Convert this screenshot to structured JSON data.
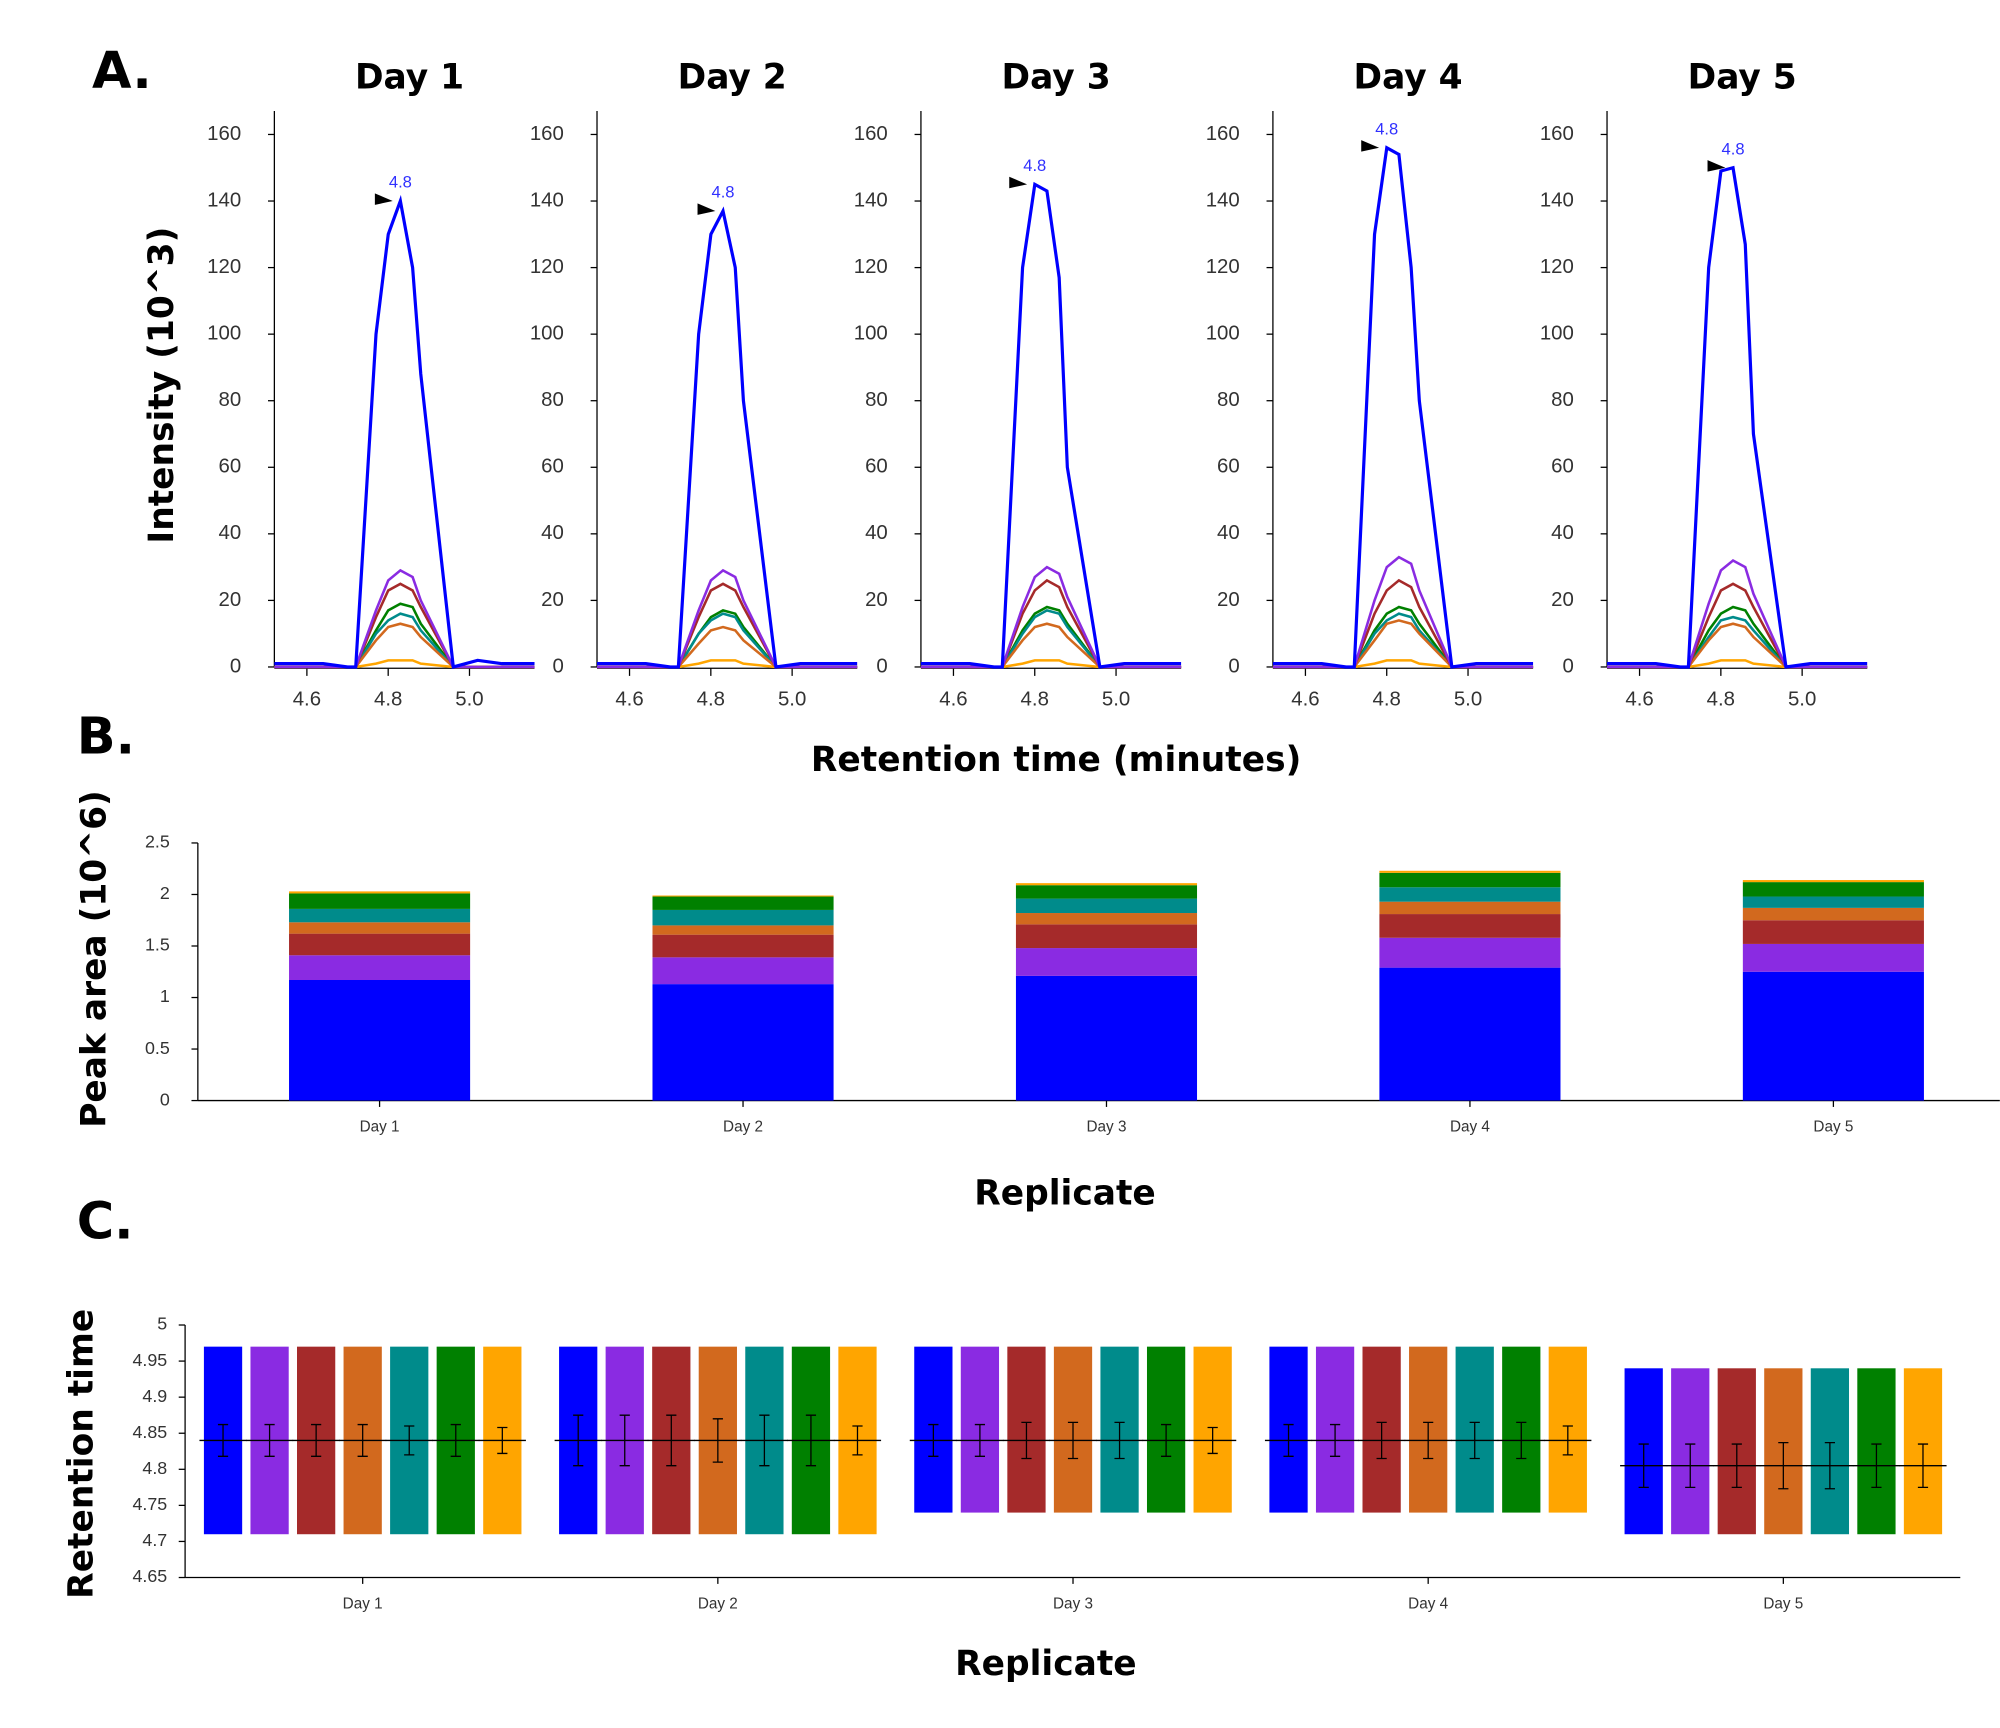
{
  "chart_data": [
    {
      "type": "line",
      "panel_label": "A.",
      "title": "Day 1",
      "ylabel": "Intensity (10^3)",
      "peak_label": "4.8",
      "x": [
        4.52,
        4.58,
        4.64,
        4.7,
        4.72,
        4.77,
        4.8,
        4.83,
        4.86,
        4.88,
        4.96,
        5.02,
        5.08,
        5.16
      ],
      "xlim": [
        4.52,
        5.16
      ],
      "xticks": [
        4.6,
        4.8,
        {
          "value": 5,
          "label": "5.0"
        }
      ],
      "ylim": [
        0,
        164
      ],
      "yticks": [
        0,
        20,
        40,
        60,
        80,
        100,
        120,
        140,
        160
      ],
      "series": [
        {
          "color": "#0000ff",
          "values": [
            1,
            1,
            1,
            0,
            0,
            100,
            130,
            140,
            120,
            88,
            0,
            2,
            1,
            1
          ]
        },
        {
          "color": "#8a2be2",
          "values": [
            0,
            0,
            0,
            0,
            0,
            17,
            26,
            29,
            27,
            20,
            0,
            0,
            0,
            0
          ]
        },
        {
          "color": "#a52a2a",
          "values": [
            0,
            0,
            0,
            0,
            0,
            15,
            23,
            25,
            23,
            18,
            0,
            0,
            0,
            0
          ]
        },
        {
          "color": "#d2691e",
          "values": [
            0,
            0,
            0,
            0,
            0,
            8,
            12,
            13,
            12,
            9,
            0,
            0,
            0,
            0
          ]
        },
        {
          "color": "#008b8b",
          "values": [
            0,
            0,
            0,
            0,
            0,
            10,
            14,
            16,
            15,
            11,
            0,
            0,
            0,
            0
          ]
        },
        {
          "color": "#008000",
          "values": [
            0,
            0,
            0,
            0,
            0,
            11,
            17,
            19,
            18,
            13,
            0,
            0,
            0,
            0
          ]
        },
        {
          "color": "#ffa500",
          "values": [
            0,
            0,
            0,
            0,
            0,
            1,
            2,
            2,
            2,
            1,
            0,
            0,
            0,
            0
          ]
        }
      ]
    },
    {
      "type": "line",
      "title": "Day 2",
      "peak_label": "4.8",
      "x": [
        4.52,
        4.58,
        4.64,
        4.7,
        4.72,
        4.77,
        4.8,
        4.83,
        4.86,
        4.88,
        4.96,
        5.02,
        5.08,
        5.16
      ],
      "xlim": [
        4.52,
        5.16
      ],
      "xticks": [
        4.6,
        4.8,
        {
          "value": 5,
          "label": "5.0"
        }
      ],
      "ylim": [
        0,
        164
      ],
      "yticks": [
        0,
        20,
        40,
        60,
        80,
        100,
        120,
        140,
        160
      ],
      "series": [
        {
          "color": "#0000ff",
          "values": [
            1,
            1,
            1,
            0,
            0,
            100,
            130,
            137,
            120,
            80,
            0,
            1,
            1,
            1
          ]
        },
        {
          "color": "#8a2be2",
          "values": [
            0,
            0,
            0,
            0,
            0,
            17,
            26,
            29,
            27,
            20,
            0,
            0,
            0,
            0
          ]
        },
        {
          "color": "#a52a2a",
          "values": [
            0,
            0,
            0,
            0,
            0,
            15,
            23,
            25,
            23,
            18,
            0,
            0,
            0,
            0
          ]
        },
        {
          "color": "#d2691e",
          "values": [
            0,
            0,
            0,
            0,
            0,
            7,
            11,
            12,
            11,
            8,
            0,
            0,
            0,
            0
          ]
        },
        {
          "color": "#008b8b",
          "values": [
            0,
            0,
            0,
            0,
            0,
            10,
            14,
            16,
            15,
            11,
            0,
            0,
            0,
            0
          ]
        },
        {
          "color": "#008000",
          "values": [
            0,
            0,
            0,
            0,
            0,
            10,
            15,
            17,
            16,
            12,
            0,
            0,
            0,
            0
          ]
        },
        {
          "color": "#ffa500",
          "values": [
            0,
            0,
            0,
            0,
            0,
            1,
            2,
            2,
            2,
            1,
            0,
            0,
            0,
            0
          ]
        }
      ]
    },
    {
      "type": "line",
      "title": "Day 3",
      "xlabel": "Retention time (minutes)",
      "peak_label": "4.8",
      "x": [
        4.52,
        4.58,
        4.64,
        4.7,
        4.72,
        4.77,
        4.8,
        4.83,
        4.86,
        4.88,
        4.96,
        5.02,
        5.08,
        5.16
      ],
      "xlim": [
        4.52,
        5.16
      ],
      "xticks": [
        4.6,
        4.8,
        {
          "value": 5,
          "label": "5.0"
        }
      ],
      "ylim": [
        0,
        164
      ],
      "yticks": [
        0,
        20,
        40,
        60,
        80,
        100,
        120,
        140,
        160
      ],
      "series": [
        {
          "color": "#0000ff",
          "values": [
            1,
            1,
            1,
            0,
            0,
            120,
            145,
            143,
            117,
            60,
            0,
            1,
            1,
            1
          ]
        },
        {
          "color": "#8a2be2",
          "values": [
            0,
            0,
            0,
            0,
            0,
            18,
            27,
            30,
            28,
            21,
            0,
            0,
            0,
            0
          ]
        },
        {
          "color": "#a52a2a",
          "values": [
            0,
            0,
            0,
            0,
            0,
            16,
            23,
            26,
            24,
            18,
            0,
            0,
            0,
            0
          ]
        },
        {
          "color": "#d2691e",
          "values": [
            0,
            0,
            0,
            0,
            0,
            8,
            12,
            13,
            12,
            9,
            0,
            0,
            0,
            0
          ]
        },
        {
          "color": "#008b8b",
          "values": [
            0,
            0,
            0,
            0,
            0,
            10,
            15,
            17,
            16,
            12,
            0,
            0,
            0,
            0
          ]
        },
        {
          "color": "#008000",
          "values": [
            0,
            0,
            0,
            0,
            0,
            11,
            16,
            18,
            17,
            13,
            0,
            0,
            0,
            0
          ]
        },
        {
          "color": "#ffa500",
          "values": [
            0,
            0,
            0,
            0,
            0,
            1,
            2,
            2,
            2,
            1,
            0,
            0,
            0,
            0
          ]
        }
      ]
    },
    {
      "type": "line",
      "title": "Day 4",
      "peak_label": "4.8",
      "x": [
        4.52,
        4.58,
        4.64,
        4.7,
        4.72,
        4.77,
        4.8,
        4.83,
        4.86,
        4.88,
        4.96,
        5.02,
        5.08,
        5.16
      ],
      "xlim": [
        4.52,
        5.16
      ],
      "xticks": [
        4.6,
        4.8,
        {
          "value": 5,
          "label": "5.0"
        }
      ],
      "ylim": [
        0,
        164
      ],
      "yticks": [
        0,
        20,
        40,
        60,
        80,
        100,
        120,
        140,
        160
      ],
      "series": [
        {
          "color": "#0000ff",
          "values": [
            1,
            1,
            1,
            0,
            0,
            130,
            156,
            154,
            120,
            80,
            0,
            1,
            1,
            1
          ]
        },
        {
          "color": "#8a2be2",
          "values": [
            0,
            0,
            0,
            0,
            0,
            20,
            30,
            33,
            31,
            23,
            0,
            0,
            0,
            0
          ]
        },
        {
          "color": "#a52a2a",
          "values": [
            0,
            0,
            0,
            0,
            0,
            16,
            23,
            26,
            24,
            18,
            0,
            0,
            0,
            0
          ]
        },
        {
          "color": "#d2691e",
          "values": [
            0,
            0,
            0,
            0,
            0,
            8,
            13,
            14,
            13,
            10,
            0,
            0,
            0,
            0
          ]
        },
        {
          "color": "#008b8b",
          "values": [
            0,
            0,
            0,
            0,
            0,
            10,
            14,
            16,
            15,
            11,
            0,
            0,
            0,
            0
          ]
        },
        {
          "color": "#008000",
          "values": [
            0,
            0,
            0,
            0,
            0,
            11,
            16,
            18,
            17,
            13,
            0,
            0,
            0,
            0
          ]
        },
        {
          "color": "#ffa500",
          "values": [
            0,
            0,
            0,
            0,
            0,
            1,
            2,
            2,
            2,
            1,
            0,
            0,
            0,
            0
          ]
        }
      ]
    },
    {
      "type": "line",
      "title": "Day 5",
      "peak_label": "4.8",
      "x": [
        4.52,
        4.58,
        4.64,
        4.7,
        4.72,
        4.77,
        4.8,
        4.83,
        4.86,
        4.88,
        4.96,
        5.02,
        5.08,
        5.16
      ],
      "xlim": [
        4.52,
        5.16
      ],
      "xticks": [
        4.6,
        4.8,
        {
          "value": 5,
          "label": "5.0"
        }
      ],
      "ylim": [
        0,
        164
      ],
      "yticks": [
        0,
        20,
        40,
        60,
        80,
        100,
        120,
        140,
        160
      ],
      "series": [
        {
          "color": "#0000ff",
          "values": [
            1,
            1,
            1,
            0,
            0,
            120,
            149,
            150,
            127,
            70,
            0,
            1,
            1,
            1
          ]
        },
        {
          "color": "#8a2be2",
          "values": [
            0,
            0,
            0,
            0,
            0,
            19,
            29,
            32,
            30,
            22,
            0,
            0,
            0,
            0
          ]
        },
        {
          "color": "#a52a2a",
          "values": [
            0,
            0,
            0,
            0,
            0,
            15,
            23,
            25,
            23,
            18,
            0,
            0,
            0,
            0
          ]
        },
        {
          "color": "#d2691e",
          "values": [
            0,
            0,
            0,
            0,
            0,
            8,
            12,
            13,
            12,
            9,
            0,
            0,
            0,
            0
          ]
        },
        {
          "color": "#008b8b",
          "values": [
            0,
            0,
            0,
            0,
            0,
            9,
            14,
            15,
            14,
            11,
            0,
            0,
            0,
            0
          ]
        },
        {
          "color": "#008000",
          "values": [
            0,
            0,
            0,
            0,
            0,
            11,
            16,
            18,
            17,
            13,
            0,
            0,
            0,
            0
          ]
        },
        {
          "color": "#ffa500",
          "values": [
            0,
            0,
            0,
            0,
            0,
            1,
            2,
            2,
            2,
            1,
            0,
            0,
            0,
            0
          ]
        }
      ]
    },
    {
      "type": "stacked_bar",
      "panel_label": "B.",
      "ylabel": "Peak area (10^6)",
      "xlabel": "Replicate",
      "categories": [
        "Day 1",
        "Day 2",
        "Day 3",
        "Day 4",
        "Day 5"
      ],
      "ylim": [
        0,
        2.5
      ],
      "yticks": [
        0,
        0.5,
        1,
        1.5,
        2,
        2.5
      ],
      "series": [
        {
          "color": "#0000ff",
          "values": [
            1.17,
            1.13,
            1.21,
            1.29,
            1.25
          ]
        },
        {
          "color": "#8a2be2",
          "values": [
            0.24,
            0.26,
            0.27,
            0.29,
            0.27
          ]
        },
        {
          "color": "#a52a2a",
          "values": [
            0.21,
            0.22,
            0.23,
            0.23,
            0.23
          ]
        },
        {
          "color": "#d2691e",
          "values": [
            0.11,
            0.09,
            0.11,
            0.12,
            0.12
          ]
        },
        {
          "color": "#008b8b",
          "values": [
            0.13,
            0.15,
            0.14,
            0.14,
            0.11
          ]
        },
        {
          "color": "#008000",
          "values": [
            0.15,
            0.13,
            0.13,
            0.14,
            0.14
          ]
        },
        {
          "color": "#ffa500",
          "values": [
            0.02,
            0.01,
            0.02,
            0.02,
            0.02
          ]
        }
      ]
    },
    {
      "type": "range_bar",
      "panel_label": "C.",
      "ylabel": "Retention time",
      "xlabel": "Replicate",
      "categories": [
        "Day 1",
        "Day 2",
        "Day 3",
        "Day 4",
        "Day 5"
      ],
      "ylim": [
        4.65,
        5
      ],
      "yticks": [
        4.65,
        4.7,
        4.75,
        4.8,
        4.85,
        4.9,
        4.95,
        5
      ],
      "series": [
        {
          "color": "#0000ff",
          "low": [
            4.71,
            4.71,
            4.74,
            4.74,
            4.71
          ],
          "high": [
            4.97,
            4.97,
            4.97,
            4.97,
            4.94
          ],
          "mean": [
            4.84,
            4.84,
            4.84,
            4.84,
            4.805
          ],
          "error": [
            0.022,
            0.035,
            0.022,
            0.022,
            0.03
          ]
        },
        {
          "color": "#8a2be2",
          "low": [
            4.71,
            4.71,
            4.74,
            4.74,
            4.71
          ],
          "high": [
            4.97,
            4.97,
            4.97,
            4.97,
            4.94
          ],
          "mean": [
            4.84,
            4.84,
            4.84,
            4.84,
            4.805
          ],
          "error": [
            0.022,
            0.035,
            0.022,
            0.022,
            0.03
          ]
        },
        {
          "color": "#a52a2a",
          "low": [
            4.71,
            4.71,
            4.74,
            4.74,
            4.71
          ],
          "high": [
            4.97,
            4.97,
            4.97,
            4.97,
            4.94
          ],
          "mean": [
            4.84,
            4.84,
            4.84,
            4.84,
            4.805
          ],
          "error": [
            0.022,
            0.035,
            0.025,
            0.025,
            0.03
          ]
        },
        {
          "color": "#d2691e",
          "low": [
            4.71,
            4.71,
            4.74,
            4.74,
            4.71
          ],
          "high": [
            4.97,
            4.97,
            4.97,
            4.97,
            4.94
          ],
          "mean": [
            4.84,
            4.84,
            4.84,
            4.84,
            4.805
          ],
          "error": [
            0.022,
            0.03,
            0.025,
            0.025,
            0.032
          ]
        },
        {
          "color": "#008b8b",
          "low": [
            4.71,
            4.71,
            4.74,
            4.74,
            4.71
          ],
          "high": [
            4.97,
            4.97,
            4.97,
            4.97,
            4.94
          ],
          "mean": [
            4.84,
            4.84,
            4.84,
            4.84,
            4.805
          ],
          "error": [
            0.02,
            0.035,
            0.025,
            0.025,
            0.032
          ]
        },
        {
          "color": "#008000",
          "low": [
            4.71,
            4.71,
            4.74,
            4.74,
            4.71
          ],
          "high": [
            4.97,
            4.97,
            4.97,
            4.97,
            4.94
          ],
          "mean": [
            4.84,
            4.84,
            4.84,
            4.84,
            4.805
          ],
          "error": [
            0.022,
            0.035,
            0.022,
            0.025,
            0.03
          ]
        },
        {
          "color": "#ffa500",
          "low": [
            4.71,
            4.71,
            4.74,
            4.74,
            4.71
          ],
          "high": [
            4.97,
            4.97,
            4.97,
            4.97,
            4.94
          ],
          "mean": [
            4.84,
            4.84,
            4.84,
            4.84,
            4.805
          ],
          "error": [
            0.018,
            0.02,
            0.018,
            0.02,
            0.03
          ]
        }
      ]
    }
  ]
}
